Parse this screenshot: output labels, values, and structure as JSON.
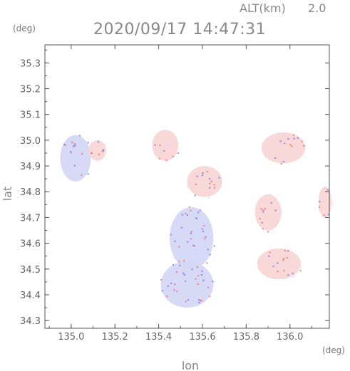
{
  "header": {
    "altitude_label": "ALT(km)",
    "altitude_value": "2.0",
    "timestamp": "2020/09/17 14:47:31"
  },
  "axes": {
    "y_unit": "(deg)",
    "x_unit": "(deg)",
    "y_label": "lat",
    "x_label": "lon"
  },
  "chart_data": {
    "type": "heatmap",
    "x_range": [
      134.88,
      136.18
    ],
    "y_range": [
      34.27,
      35.37
    ],
    "x_ticks": [
      "135.0",
      "135.2",
      "135.4",
      "135.6",
      "135.8",
      "136.0"
    ],
    "y_ticks": [
      "34.3",
      "34.4",
      "34.5",
      "34.6",
      "34.7",
      "34.8",
      "34.9",
      "35.0",
      "35.1",
      "35.2",
      "35.3"
    ],
    "colors": {
      "approaching": "#7a7ae8",
      "receding": "#f07070",
      "weak_approaching": "#d4d8f6",
      "weak_receding": "#f9d6d6"
    },
    "echo_regions": [
      {
        "lon": 135.02,
        "lat": 34.93,
        "rx": 0.07,
        "ry": 0.09,
        "tone": "weak_approaching"
      },
      {
        "lon": 135.12,
        "lat": 34.96,
        "rx": 0.04,
        "ry": 0.04,
        "tone": "weak_receding"
      },
      {
        "lon": 135.53,
        "lat": 34.44,
        "rx": 0.12,
        "ry": 0.09,
        "tone": "weak_approaching"
      },
      {
        "lon": 135.55,
        "lat": 34.62,
        "rx": 0.1,
        "ry": 0.12,
        "tone": "weak_approaching"
      },
      {
        "lon": 135.61,
        "lat": 34.84,
        "rx": 0.08,
        "ry": 0.06,
        "tone": "weak_receding"
      },
      {
        "lon": 135.43,
        "lat": 34.98,
        "rx": 0.06,
        "ry": 0.06,
        "tone": "weak_receding"
      },
      {
        "lon": 135.97,
        "lat": 34.97,
        "rx": 0.1,
        "ry": 0.06,
        "tone": "weak_receding"
      },
      {
        "lon": 135.9,
        "lat": 34.72,
        "rx": 0.06,
        "ry": 0.07,
        "tone": "weak_receding"
      },
      {
        "lon": 135.95,
        "lat": 34.52,
        "rx": 0.1,
        "ry": 0.06,
        "tone": "weak_receding"
      },
      {
        "lon": 136.16,
        "lat": 34.76,
        "rx": 0.03,
        "ry": 0.06,
        "tone": "weak_receding"
      }
    ]
  }
}
